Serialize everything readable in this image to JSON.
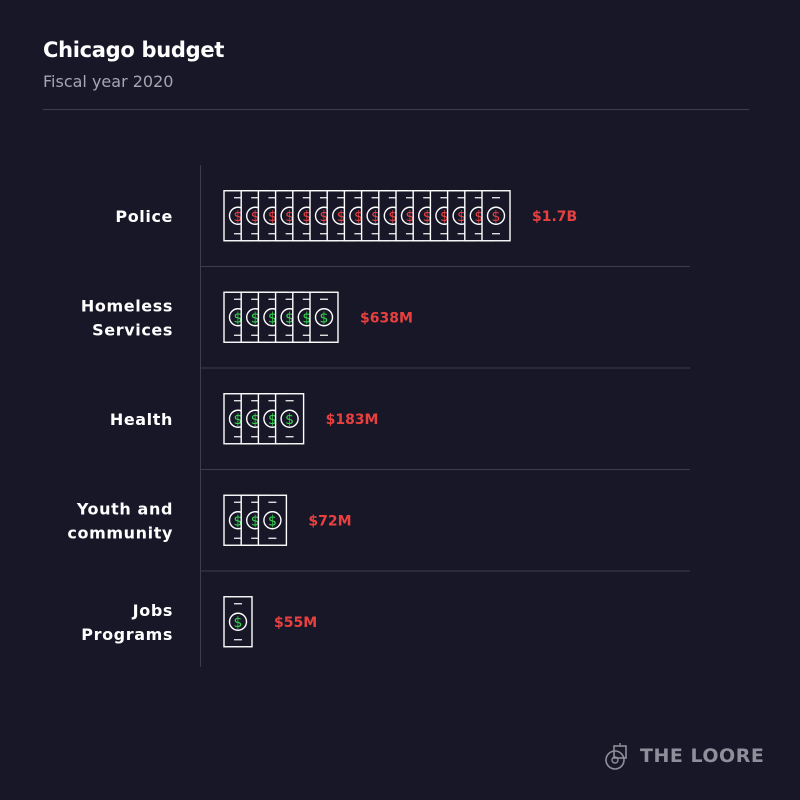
{
  "header": {
    "title": "Chicago budget",
    "subtitle": "Fiscal year 2020"
  },
  "brand": {
    "name": "THE LOORE",
    "icon": "loore-logo-icon"
  },
  "colors": {
    "background": "#171728",
    "bill_stroke": "#ffffff",
    "police_dollar": "#e8403f",
    "other_dollar": "#35d24c",
    "value_label": "#e8403f",
    "divider": "#3d3d50"
  },
  "chart_data": {
    "type": "bar",
    "title": "Chicago budget",
    "subtitle": "Fiscal year 2020",
    "unit_icon": "dollar-bill-icon",
    "categories": [
      {
        "name": "Police",
        "lines": [
          "Police"
        ],
        "label": "$1.7B",
        "value": 1700,
        "bills": 16
      },
      {
        "name": "Homeless Services",
        "lines": [
          "Homeless",
          "Services"
        ],
        "label": "$638M",
        "value": 638,
        "bills": 6
      },
      {
        "name": "Health",
        "lines": [
          "Health"
        ],
        "label": "$183M",
        "value": 183,
        "bills": 4
      },
      {
        "name": "Youth and community",
        "lines": [
          "Youth and",
          "community"
        ],
        "label": "$72M",
        "value": 72,
        "bills": 3
      },
      {
        "name": "Jobs Programs",
        "lines": [
          "Jobs",
          "Programs"
        ],
        "label": "$55M",
        "value": 55,
        "bills": 1
      }
    ],
    "value_unit": "millions of dollars"
  }
}
